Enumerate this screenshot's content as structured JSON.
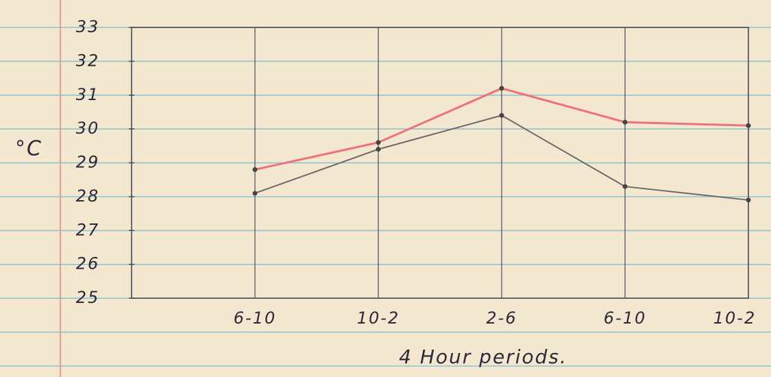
{
  "chart_data": {
    "type": "line",
    "y_label": "°C",
    "x_label": "4 Hour periods.",
    "categories": [
      "6-10",
      "10-2",
      "2-6",
      "6-10",
      "10-2"
    ],
    "series": [
      {
        "color": "#f0707a",
        "values": [
          28.8,
          29.6,
          31.2,
          30.2,
          30.1
        ]
      },
      {
        "color": "#6b6b6b",
        "values": [
          28.1,
          29.4,
          30.4,
          28.3,
          27.9
        ]
      }
    ],
    "ylim": [
      25,
      33
    ],
    "yticks": [
      25,
      26,
      27,
      28,
      29,
      30,
      31,
      32,
      33
    ]
  }
}
